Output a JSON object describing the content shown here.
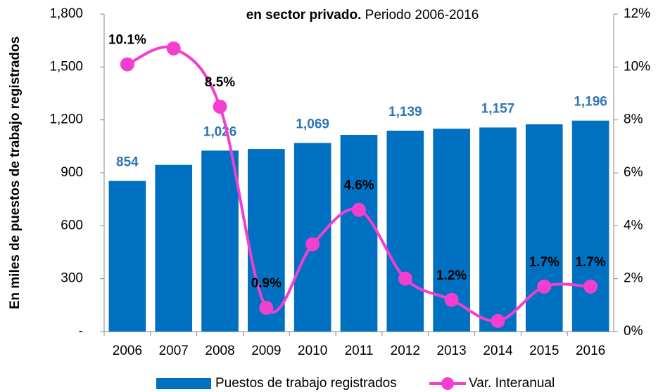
{
  "chart_data": {
    "type": "bar-line",
    "title": "en sector privado.",
    "subtitle": "Periodo 2006-2016",
    "y_label": "En miles de puestos de trabajo registrados",
    "categories": [
      "2006",
      "2007",
      "2008",
      "2009",
      "2010",
      "2011",
      "2012",
      "2013",
      "2014",
      "2015",
      "2016"
    ],
    "series": [
      {
        "name": "Puestos de trabajo registrados",
        "type": "bar",
        "color": "#0070c0",
        "values": [
          854,
          945,
          1026,
          1035,
          1069,
          1115,
          1139,
          1150,
          1157,
          1175,
          1196
        ],
        "value_labels": [
          "854",
          null,
          "1,026",
          null,
          "1,069",
          null,
          "1,139",
          null,
          "1,157",
          null,
          "1,196"
        ]
      },
      {
        "name": "Var. Interanual",
        "type": "line",
        "axis": "y2",
        "color": "#f23fd0",
        "values": [
          10.1,
          10.7,
          8.5,
          0.9,
          3.3,
          4.6,
          2.0,
          1.2,
          0.4,
          1.7,
          1.7
        ],
        "value_labels": [
          "10.1%",
          null,
          "8.5%",
          "0.9%",
          null,
          "4.6%",
          null,
          "1.2%",
          null,
          "1.7%",
          "1.7%"
        ]
      }
    ],
    "ylim": [
      0,
      1800
    ],
    "yticks": [
      {
        "value": 0,
        "label": "-"
      },
      300,
      600,
      900,
      {
        "value": 1200,
        "label": "1,200"
      },
      {
        "value": 1500,
        "label": "1,500"
      },
      {
        "value": 1800,
        "label": "1,800"
      }
    ],
    "y2lim": [
      0,
      12
    ],
    "y2ticks": [
      {
        "value": 0,
        "label": "0%"
      },
      {
        "value": 2,
        "label": "2%"
      },
      {
        "value": 4,
        "label": "4%"
      },
      {
        "value": 6,
        "label": "6%"
      },
      {
        "value": 8,
        "label": "8%"
      },
      {
        "value": 10,
        "label": "10%"
      },
      {
        "value": 12,
        "label": "12%"
      }
    ],
    "grid": false,
    "legend": "bottom"
  }
}
